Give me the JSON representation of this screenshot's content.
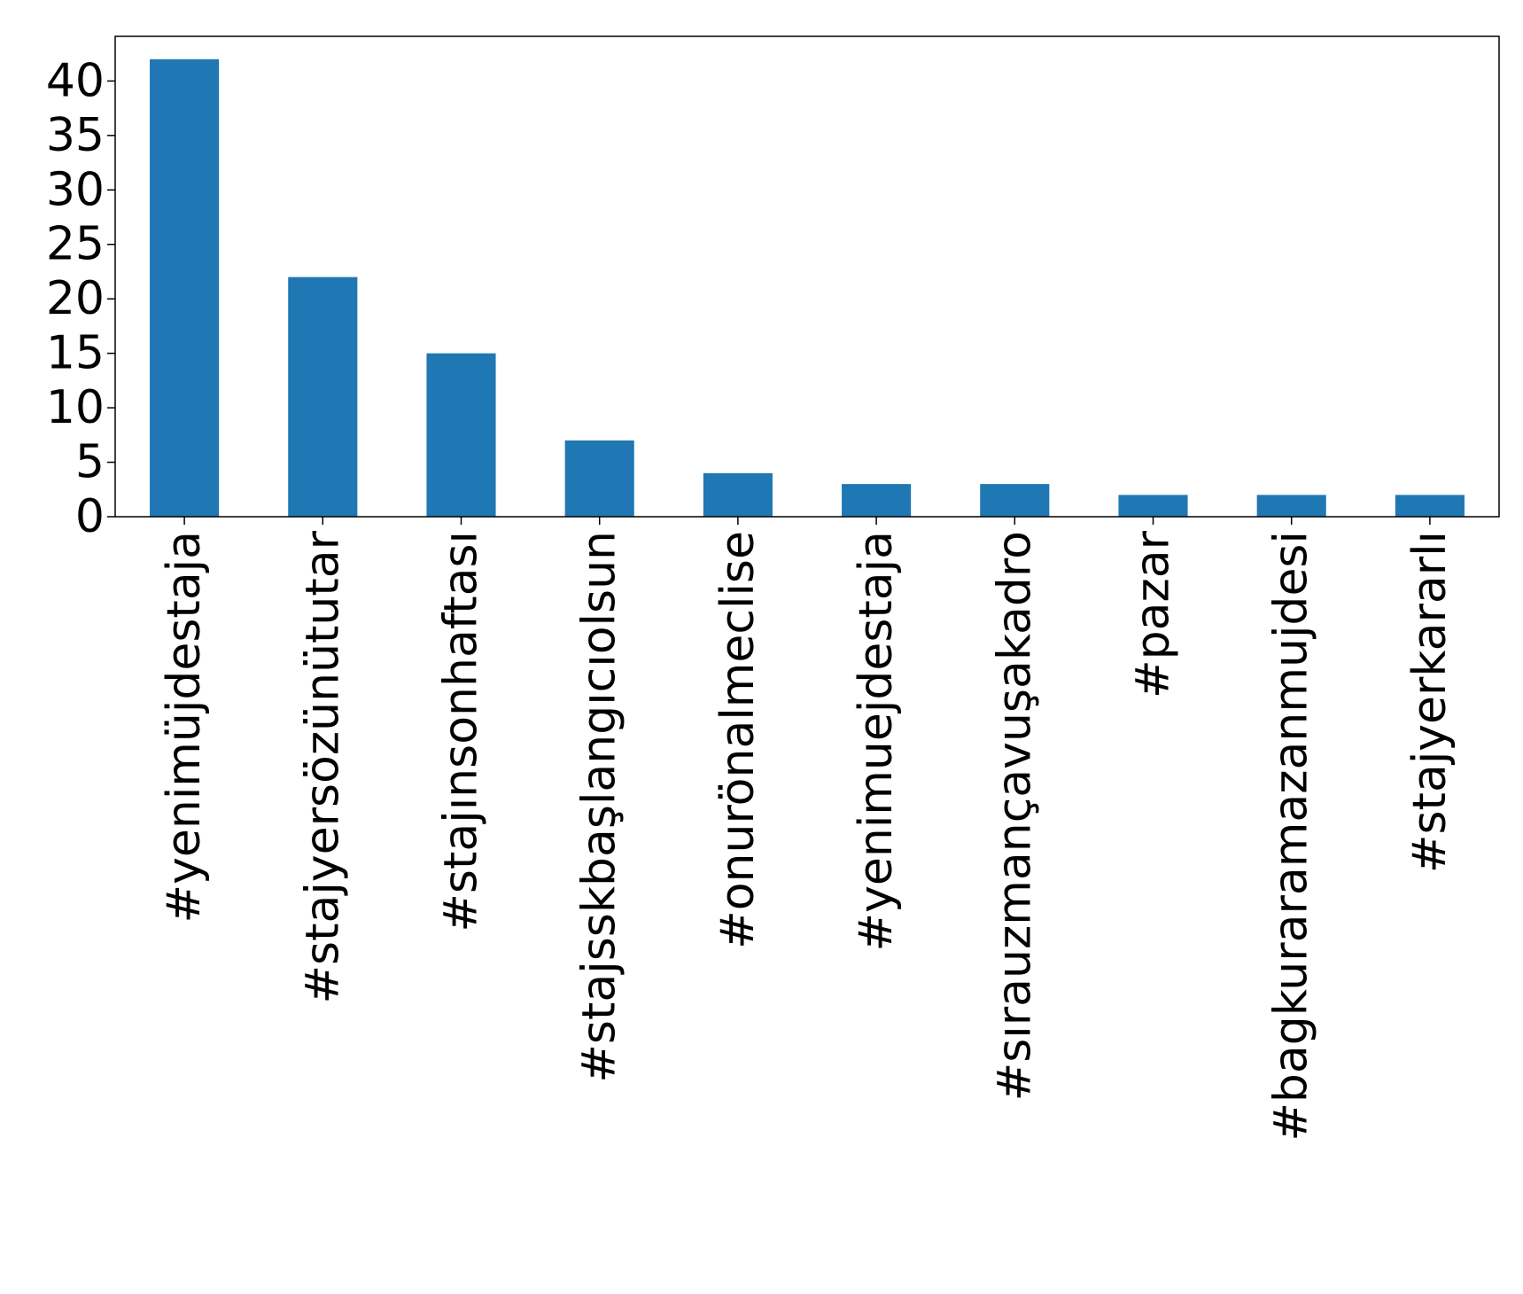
{
  "chart_data": {
    "type": "bar",
    "title": "",
    "xlabel": "",
    "ylabel": "",
    "categories": [
      "#yenimüjdestaja",
      "#stajyersözünütutar",
      "#stajınsonhaftası",
      "#stajsskbaşlangıcıolsun",
      "#onurönalmeclise",
      "#yenimuejdestaja",
      "#sırauzmançavuşakadro",
      "#pazar",
      "#bagkuraramazanmujdesi",
      "#stajyerkararlı"
    ],
    "values": [
      42,
      22,
      15,
      7,
      4,
      3,
      3,
      2,
      2,
      2
    ],
    "ylim": [
      0,
      44.1
    ],
    "yticks": [
      0,
      5,
      10,
      15,
      20,
      25,
      30,
      35,
      40
    ],
    "grid": false,
    "legend": "none",
    "colors": {
      "bar": "#1f77b4",
      "axes": "#000000",
      "background": "#ffffff"
    }
  }
}
